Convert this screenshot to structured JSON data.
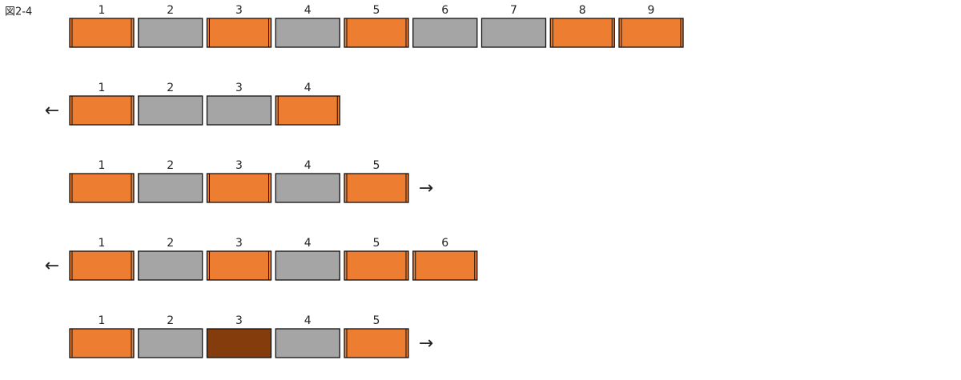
{
  "figure_label": "図2-4",
  "rows": [
    {
      "cells": [
        {
          "label": "1",
          "color": "#ED7D31"
        },
        {
          "label": "2",
          "color": "#A5A5A5"
        },
        {
          "label": "3",
          "color": "#ED7D31"
        },
        {
          "label": "4",
          "color": "#A5A5A5"
        },
        {
          "label": "5",
          "color": "#ED7D31"
        },
        {
          "label": "6",
          "color": "#A5A5A5"
        },
        {
          "label": "7",
          "color": "#A5A5A5"
        },
        {
          "label": "8",
          "color": "#ED7D31"
        },
        {
          "label": "9",
          "color": "#ED7D31"
        }
      ]
    },
    {
      "arrow": "←",
      "cells": [
        {
          "label": "1",
          "color": "#ED7D31"
        },
        {
          "label": "2",
          "color": "#A5A5A5"
        },
        {
          "label": "3",
          "color": "#A5A5A5"
        },
        {
          "label": "4",
          "color": "#ED7D31"
        }
      ]
    },
    {
      "arrow": "→",
      "cells": [
        {
          "label": "1",
          "color": "#ED7D31"
        },
        {
          "label": "2",
          "color": "#A5A5A5"
        },
        {
          "label": "3",
          "color": "#ED7D31"
        },
        {
          "label": "4",
          "color": "#A5A5A5"
        },
        {
          "label": "5",
          "color": "#ED7D31"
        }
      ]
    },
    {
      "arrow": "←",
      "cells": [
        {
          "label": "1",
          "color": "#ED7D31"
        },
        {
          "label": "2",
          "color": "#A5A5A5"
        },
        {
          "label": "3",
          "color": "#ED7D31"
        },
        {
          "label": "4",
          "color": "#A5A5A5"
        },
        {
          "label": "5",
          "color": "#ED7D31"
        },
        {
          "label": "6",
          "color": "#ED7D31"
        }
      ]
    },
    {
      "arrow": "→",
      "cells": [
        {
          "label": "1",
          "color": "#ED7D31"
        },
        {
          "label": "2",
          "color": "#A5A5A5"
        },
        {
          "label": "3",
          "color": "#843C0C"
        },
        {
          "label": "4",
          "color": "#A5A5A5"
        },
        {
          "label": "5",
          "color": "#ED7D31"
        }
      ]
    }
  ]
}
